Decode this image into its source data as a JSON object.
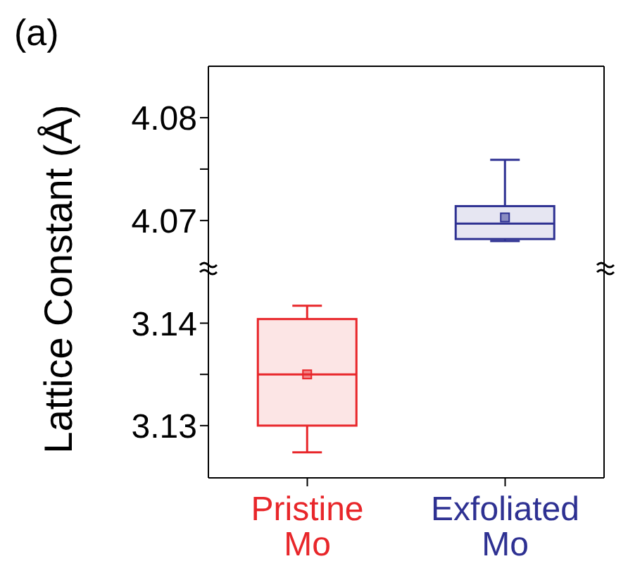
{
  "chart_data": [
    {
      "type": "box",
      "title": "(a)",
      "categories": [
        null,
        null
      ],
      "colors": [
        "#e8262a",
        "#2e3192"
      ],
      "ylim": [
        4.0654,
        4.085
      ],
      "yticks": [
        4.07,
        {
          "value": 4.075,
          "label": null
        },
        4.08
      ],
      "tick_labels": "y",
      "boxes": [
        null,
        {
          "low": 4.068,
          "q1": 4.0682,
          "median": 4.0697,
          "q3": 4.0714,
          "high": 4.0759,
          "mean": 4.0703
        }
      ]
    },
    {
      "type": "box",
      "ylabel": "Lattice Constant (Å)",
      "categories": [
        "Pristine Mo",
        "Exfoliated Mo"
      ],
      "colors": [
        "#e8262a",
        "#2e3192"
      ],
      "ylim": [
        3.1249,
        3.1454
      ],
      "yticks": [
        3.13,
        {
          "value": 3.135,
          "label": null
        },
        3.14
      ],
      "boxes": [
        {
          "low": 3.1274,
          "q1": 3.13,
          "median": 3.135,
          "q3": 3.1404,
          "high": 3.1417,
          "mean": 3.135
        },
        null
      ]
    }
  ]
}
